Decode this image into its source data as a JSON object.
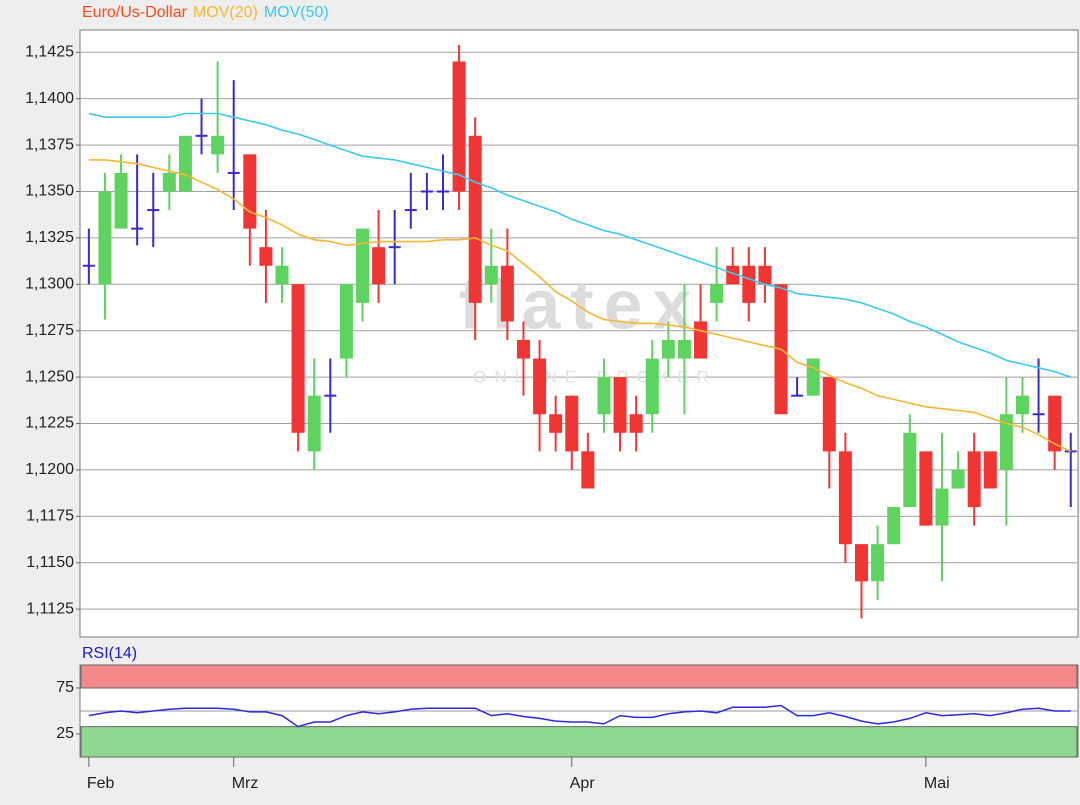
{
  "chart_data": [
    {
      "type": "candlestick",
      "title": "Euro/Us-Dollar",
      "title_color": "#ff4a1a",
      "watermark": "flatex",
      "watermark_sub": "ONLINE BROKER",
      "colors": {
        "up": "#5fd35f",
        "down": "#f03535",
        "doji": "#3a2ad0"
      },
      "open": [
        1.131,
        1.13,
        1.133,
        1.133,
        1.134,
        1.135,
        1.135,
        1.138,
        1.137,
        1.136,
        1.137,
        1.132,
        1.13,
        1.13,
        1.121,
        1.124,
        1.126,
        1.129,
        1.132,
        1.132,
        1.134,
        1.135,
        1.135,
        1.142,
        1.138,
        1.13,
        1.131,
        1.127,
        1.126,
        1.123,
        1.124,
        1.121,
        1.123,
        1.125,
        1.123,
        1.123,
        1.126,
        1.126,
        1.128,
        1.129,
        1.131,
        1.131,
        1.131,
        1.13,
        1.124,
        1.124,
        1.125,
        1.121,
        1.116,
        1.114,
        1.116,
        1.118,
        1.121,
        1.117,
        1.119,
        1.121,
        1.121,
        1.12,
        1.123,
        1.123,
        1.124,
        1.121
      ],
      "high": [
        1.133,
        1.136,
        1.137,
        1.137,
        1.136,
        1.137,
        1.138,
        1.14,
        1.142,
        1.141,
        1.137,
        1.134,
        1.132,
        1.13,
        1.126,
        1.126,
        1.13,
        1.133,
        1.134,
        1.134,
        1.136,
        1.136,
        1.137,
        1.1429,
        1.139,
        1.133,
        1.133,
        1.128,
        1.127,
        1.124,
        1.124,
        1.122,
        1.126,
        1.125,
        1.124,
        1.127,
        1.128,
        1.13,
        1.13,
        1.132,
        1.132,
        1.132,
        1.132,
        1.13,
        1.125,
        1.126,
        1.125,
        1.122,
        1.116,
        1.117,
        1.118,
        1.123,
        1.121,
        1.122,
        1.121,
        1.122,
        1.121,
        1.125,
        1.125,
        1.126,
        1.124,
        1.122
      ],
      "low": [
        1.13,
        1.1281,
        1.133,
        1.1321,
        1.132,
        1.134,
        1.135,
        1.137,
        1.136,
        1.134,
        1.131,
        1.129,
        1.129,
        1.121,
        1.12,
        1.122,
        1.125,
        1.128,
        1.129,
        1.13,
        1.133,
        1.134,
        1.134,
        1.134,
        1.127,
        1.129,
        1.127,
        1.124,
        1.121,
        1.121,
        1.12,
        1.119,
        1.122,
        1.121,
        1.121,
        1.122,
        1.125,
        1.123,
        1.126,
        1.128,
        1.13,
        1.128,
        1.129,
        1.123,
        1.124,
        1.124,
        1.119,
        1.115,
        1.112,
        1.113,
        1.116,
        1.118,
        1.117,
        1.114,
        1.119,
        1.117,
        1.119,
        1.117,
        1.122,
        1.122,
        1.12,
        1.118
      ],
      "close": [
        1.131,
        1.135,
        1.136,
        1.133,
        1.134,
        1.136,
        1.138,
        1.138,
        1.138,
        1.136,
        1.133,
        1.131,
        1.131,
        1.122,
        1.124,
        1.124,
        1.13,
        1.133,
        1.13,
        1.132,
        1.134,
        1.135,
        1.135,
        1.135,
        1.129,
        1.131,
        1.128,
        1.126,
        1.123,
        1.122,
        1.121,
        1.119,
        1.125,
        1.122,
        1.122,
        1.126,
        1.127,
        1.127,
        1.126,
        1.13,
        1.13,
        1.129,
        1.13,
        1.123,
        1.124,
        1.126,
        1.121,
        1.116,
        1.114,
        1.116,
        1.118,
        1.122,
        1.117,
        1.119,
        1.12,
        1.118,
        1.119,
        1.123,
        1.124,
        1.123,
        1.121,
        1.121
      ],
      "series": [
        {
          "name": "MOV(20)",
          "color": "#f5b731",
          "values": [
            1.1367,
            1.1367,
            1.1366,
            1.1365,
            1.1363,
            1.1361,
            1.1359,
            1.1355,
            1.1351,
            1.1346,
            1.1339,
            1.1336,
            1.1332,
            1.1327,
            1.1324,
            1.1323,
            1.1321,
            1.1322,
            1.1323,
            1.1323,
            1.1323,
            1.1323,
            1.1324,
            1.1324,
            1.1325,
            1.1321,
            1.1318,
            1.1311,
            1.1304,
            1.1296,
            1.1291,
            1.1285,
            1.1281,
            1.128,
            1.1279,
            1.1279,
            1.1278,
            1.1277,
            1.1275,
            1.1273,
            1.1271,
            1.1269,
            1.1267,
            1.1265,
            1.1258,
            1.1255,
            1.1251,
            1.1247,
            1.1244,
            1.124,
            1.1238,
            1.1236,
            1.1234,
            1.1233,
            1.1232,
            1.1231,
            1.1228,
            1.1225,
            1.1223,
            1.1219,
            1.1214,
            1.121
          ]
        },
        {
          "name": "MOV(50)",
          "color": "#3cc8f0",
          "values": [
            1.1392,
            1.139,
            1.139,
            1.139,
            1.139,
            1.139,
            1.1392,
            1.1392,
            1.1392,
            1.139,
            1.1388,
            1.1386,
            1.1383,
            1.1381,
            1.1378,
            1.1375,
            1.1372,
            1.1369,
            1.1368,
            1.1367,
            1.1365,
            1.1363,
            1.1361,
            1.1359,
            1.1355,
            1.1352,
            1.1348,
            1.1345,
            1.1342,
            1.1339,
            1.1335,
            1.1332,
            1.1329,
            1.1327,
            1.1324,
            1.1321,
            1.1318,
            1.1315,
            1.1312,
            1.1309,
            1.1306,
            1.1303,
            1.13,
            1.1298,
            1.1295,
            1.1294,
            1.1293,
            1.1292,
            1.129,
            1.1287,
            1.1284,
            1.128,
            1.1277,
            1.1273,
            1.1269,
            1.1266,
            1.1263,
            1.1259,
            1.1257,
            1.1255,
            1.1253,
            1.125
          ]
        }
      ],
      "ylim": [
        1.111,
        1.1437
      ],
      "yticks": [
        {
          "value": 1.1125,
          "label": "1,1125"
        },
        {
          "value": 1.115,
          "label": "1,1150"
        },
        {
          "value": 1.1175,
          "label": "1,1175"
        },
        {
          "value": 1.12,
          "label": "1,1200"
        },
        {
          "value": 1.1225,
          "label": "1,1225"
        },
        {
          "value": 1.125,
          "label": "1,1250"
        },
        {
          "value": 1.1275,
          "label": "1,1275"
        },
        {
          "value": 1.13,
          "label": "1,1300"
        },
        {
          "value": 1.1325,
          "label": "1,1325"
        },
        {
          "value": 1.135,
          "label": "1,1350"
        },
        {
          "value": 1.1375,
          "label": "1,1375"
        },
        {
          "value": 1.14,
          "label": "1,1400"
        },
        {
          "value": 1.1425,
          "label": "1,1425"
        }
      ],
      "grid": true
    },
    {
      "type": "line",
      "title": "RSI(14)",
      "title_color": "#1a1ad0",
      "categories": [
        "Feb",
        null,
        null,
        null,
        null,
        null,
        null,
        null,
        null,
        "Mrz",
        null,
        null,
        null,
        null,
        null,
        null,
        null,
        null,
        null,
        null,
        null,
        null,
        null,
        null,
        null,
        null,
        null,
        null,
        null,
        null,
        "Apr",
        null,
        null,
        null,
        null,
        null,
        null,
        null,
        null,
        null,
        null,
        null,
        null,
        null,
        null,
        null,
        null,
        null,
        null,
        null,
        null,
        null,
        "Mai",
        null,
        null,
        null,
        null,
        null,
        null,
        null,
        null,
        null
      ],
      "series": [
        {
          "name": "RSI(14)",
          "color": "#2a2ae0",
          "values": [
            45,
            48,
            50,
            48,
            50,
            52,
            53,
            53,
            53,
            52,
            49,
            49,
            45,
            33,
            38,
            38,
            45,
            49,
            47,
            49,
            52,
            53,
            53,
            53,
            53,
            45,
            47,
            44,
            42,
            39,
            38,
            38,
            36,
            45,
            43,
            43,
            47,
            49,
            50,
            48,
            54,
            54,
            54,
            56,
            45,
            45,
            48,
            44,
            39,
            36,
            38,
            42,
            48,
            45,
            46,
            47,
            45,
            48,
            52,
            53,
            50,
            50
          ]
        }
      ],
      "bands": [
        {
          "from": 75,
          "to": 100,
          "color": "#f58a8a"
        },
        {
          "from": 0,
          "to": 33,
          "color": "#8fd88f"
        }
      ],
      "reference_line": 50,
      "ylim": [
        0,
        100
      ],
      "yticks": [
        25,
        75
      ]
    }
  ]
}
